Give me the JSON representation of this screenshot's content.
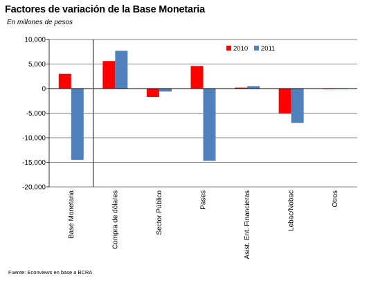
{
  "header": {
    "title": "Factores de variación de la Base Monetaria",
    "subtitle": "En millones de pesos"
  },
  "footer": {
    "source": "Fuente: Econviews en base a BCRA"
  },
  "colors": {
    "2010": "#ff0000",
    "2011": "#4f81bd",
    "gridline": "#000000"
  },
  "chart_data": {
    "type": "bar",
    "categories": [
      "Base Monetaria",
      "Compra de dólares",
      "Sector Público",
      "Pases",
      "Asist. Ent. Financieras",
      "Lebac/Nobac",
      "Otros"
    ],
    "series": [
      {
        "name": "2010",
        "values": [
          3000,
          5600,
          -1700,
          4600,
          200,
          -5100,
          -100
        ]
      },
      {
        "name": "2011",
        "values": [
          -14500,
          7700,
          -600,
          -14700,
          500,
          -7000,
          -100
        ]
      }
    ],
    "yticks": [
      "10,000",
      "5,000",
      "0",
      "-5,000",
      "-10,000",
      "-15,000",
      "-20,000"
    ],
    "ylim": [
      -20000,
      10000
    ],
    "grid": true,
    "legend_position": "top-right",
    "xlabel": "",
    "ylabel": ""
  }
}
